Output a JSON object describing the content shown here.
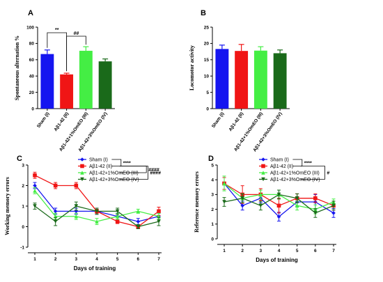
{
  "chart_data": [
    {
      "panel": "A",
      "type": "bar",
      "ylabel": "Spontaneous alternation %",
      "ylim": [
        0,
        100
      ],
      "yticks": [
        "0",
        "20",
        "40",
        "60",
        "80",
        "100"
      ],
      "categories": [
        "Sham (I)",
        "Aβ1-42 (II)",
        "Aβ1-42+1%OmEO (III)",
        "Aβ1-42+3%OmEO (IV)"
      ],
      "values": [
        67,
        42,
        71,
        58
      ],
      "errors": [
        5,
        1.5,
        5,
        3
      ],
      "colors": [
        "#1515f0",
        "#f01515",
        "#44ee44",
        "#1a6a1a"
      ],
      "annotations": [
        {
          "text": "**",
          "from": 0,
          "to": 1
        },
        {
          "text": "##",
          "from": 1,
          "to": 2
        }
      ]
    },
    {
      "panel": "B",
      "type": "bar",
      "ylabel": "Locomotor activity",
      "ylim": [
        0,
        25
      ],
      "yticks": [
        "0",
        "5",
        "10",
        "15",
        "20",
        "25"
      ],
      "categories": [
        "Sham (I)",
        "Aβ1-42 (II)",
        "Aβ1-42+1%OmEO (III)",
        "Aβ1-42+3%OmEO (IV)"
      ],
      "values": [
        18.3,
        17.7,
        17.8,
        17.0
      ],
      "errors": [
        1.2,
        2.0,
        1.2,
        1.0
      ],
      "colors": [
        "#1515f0",
        "#f01515",
        "#44ee44",
        "#1a6a1a"
      ]
    },
    {
      "panel": "C",
      "type": "line",
      "ylabel": "Working memory errors",
      "xlabel": "Days of training",
      "ylim": [
        -1,
        3
      ],
      "yticks": [
        "-1",
        "0",
        "1",
        "2",
        "3"
      ],
      "x": [
        1,
        2,
        3,
        4,
        5,
        6,
        7
      ],
      "series": [
        {
          "name": "Sham (I)",
          "color": "#1515f0",
          "marker": "diamond",
          "values": [
            2.0,
            0.75,
            0.75,
            0.75,
            0.5,
            0.25,
            0.5
          ],
          "errors": [
            0.15,
            0.15,
            0.15,
            0.15,
            0.15,
            0.15,
            0.15
          ]
        },
        {
          "name": "Aβ1-42 (II)",
          "color": "#f01515",
          "marker": "square",
          "values": [
            2.5,
            2.0,
            2.0,
            0.75,
            0.25,
            0.0,
            0.75
          ],
          "errors": [
            0.15,
            0.15,
            0.15,
            0.1,
            0.1,
            0.1,
            0.2
          ]
        },
        {
          "name": "Aβ1-42+1%OmEO (III)",
          "color": "#44ee44",
          "marker": "triangle",
          "values": [
            1.75,
            0.5,
            0.5,
            0.25,
            0.5,
            0.75,
            0.5
          ],
          "errors": [
            0.15,
            0.15,
            0.15,
            0.15,
            0.15,
            0.1,
            0.15
          ]
        },
        {
          "name": "Aβ1-42+3%OmEO (IV)",
          "color": "#1a6a1a",
          "marker": "triangle-down",
          "values": [
            1.0,
            0.25,
            1.0,
            0.75,
            0.75,
            0.0,
            0.25
          ],
          "errors": [
            0.15,
            0.2,
            0.2,
            0.15,
            0.15,
            0.1,
            0.2
          ]
        }
      ],
      "significance": [
        {
          "text": "****",
          "between": [
            "Sham (I)",
            "Aβ1-42 (II)"
          ]
        },
        {
          "text": "####",
          "between": [
            "Aβ1-42 (II)",
            "Aβ1-42+1%OmEO (III)"
          ]
        },
        {
          "text": "####",
          "between": [
            "Aβ1-42 (II)",
            "Aβ1-42+3%OmEO (IV)"
          ]
        }
      ]
    },
    {
      "panel": "D",
      "type": "line",
      "ylabel": "Reference memory errors",
      "xlabel": "Days of training",
      "ylim": [
        0,
        5
      ],
      "yticks": [
        "0",
        "1",
        "2",
        "3",
        "4",
        "5"
      ],
      "x": [
        1,
        2,
        3,
        4,
        5,
        6,
        7
      ],
      "series": [
        {
          "name": "Sham (I)",
          "color": "#1515f0",
          "marker": "diamond",
          "values": [
            3.75,
            2.25,
            2.75,
            1.5,
            2.5,
            2.5,
            1.75
          ],
          "errors": [
            0.4,
            0.3,
            0.3,
            0.3,
            0.3,
            0.5,
            0.3
          ]
        },
        {
          "name": "Aβ1-42 (II)",
          "color": "#f01515",
          "marker": "square",
          "values": [
            3.75,
            3.0,
            3.0,
            2.25,
            2.75,
            2.75,
            2.25
          ],
          "errors": [
            0.4,
            0.6,
            0.4,
            0.5,
            0.3,
            0.3,
            0.3
          ]
        },
        {
          "name": "Aβ1-42+1%OmEO (III)",
          "color": "#44ee44",
          "marker": "triangle",
          "values": [
            3.75,
            2.75,
            3.0,
            3.0,
            2.25,
            2.0,
            2.5
          ],
          "errors": [
            0.5,
            0.3,
            0.3,
            0.3,
            0.3,
            0.3,
            0.2
          ]
        },
        {
          "name": "Aβ1-42+3%OmEO (IV)",
          "color": "#1a6a1a",
          "marker": "triangle-down",
          "values": [
            2.5,
            2.75,
            2.25,
            3.0,
            2.75,
            1.75,
            2.25
          ],
          "errors": [
            0.3,
            0.3,
            0.3,
            0.3,
            0.3,
            0.3,
            0.3
          ]
        }
      ],
      "significance": [
        {
          "text": "****",
          "between": [
            "Sham (I)",
            "Aβ1-42 (II)"
          ]
        },
        {
          "text": "#",
          "between": [
            "Aβ1-42 (II)",
            "Aβ1-42+3%OmEO (IV)"
          ]
        }
      ]
    }
  ]
}
